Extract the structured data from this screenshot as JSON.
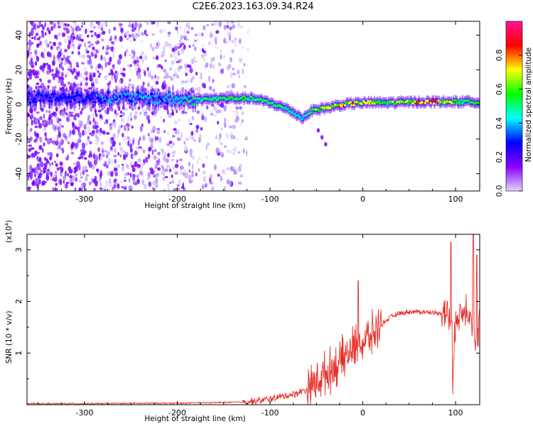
{
  "title": "C2E6.2023.163.09.34.R24",
  "chart_data": [
    {
      "type": "heatmap",
      "title": "C2E6.2023.163.09.34.R24",
      "xlabel": "Height of straight line (km)",
      "ylabel": "Frequency (Hz)",
      "xlim": [
        -362,
        126
      ],
      "ylim": [
        -50,
        48
      ],
      "x_ticks": [
        -300,
        -200,
        -100,
        0,
        100
      ],
      "x_tick_labels": [
        "-300",
        "-200",
        "-100",
        "0",
        "100"
      ],
      "y_ticks": [
        -40,
        -20,
        0,
        20,
        40
      ],
      "y_tick_labels": [
        "-40",
        "-20",
        "0",
        "20",
        "40"
      ],
      "colorbar": {
        "label": "Normalized spectral amplitude",
        "range": [
          0,
          1
        ],
        "ticks": [
          0.0,
          0.2,
          0.4,
          0.6,
          0.8
        ],
        "tick_labels": [
          "0.0",
          "0.2",
          "0.4",
          "0.6",
          "0.8"
        ],
        "colormap": "rainbow",
        "colors": [
          "#e0d6ff",
          "#8a00ff",
          "#0000ff",
          "#00ffff",
          "#00ff00",
          "#ffff00",
          "#ff0000",
          "#ff1493"
        ]
      },
      "ridge": [
        {
          "x": -362,
          "f": 4.0,
          "amp": 0.25
        },
        {
          "x": -300,
          "f": 4.0,
          "amp": 0.3
        },
        {
          "x": -250,
          "f": 4.0,
          "amp": 0.4
        },
        {
          "x": -210,
          "f": 3.0,
          "amp": 0.4
        },
        {
          "x": -185,
          "f": 2.5,
          "amp": 0.5
        },
        {
          "x": -150,
          "f": 3.5,
          "amp": 0.55
        },
        {
          "x": -120,
          "f": 3.5,
          "amp": 0.55
        },
        {
          "x": -100,
          "f": 1.0,
          "amp": 0.55
        },
        {
          "x": -80,
          "f": -3.0,
          "amp": 0.5
        },
        {
          "x": -65,
          "f": -8.0,
          "amp": 0.45
        },
        {
          "x": -55,
          "f": -3.5,
          "amp": 0.6
        },
        {
          "x": -40,
          "f": -2.0,
          "amp": 0.7
        },
        {
          "x": -20,
          "f": 0.0,
          "amp": 0.8
        },
        {
          "x": 0,
          "f": 1.0,
          "amp": 0.75
        },
        {
          "x": 30,
          "f": 1.0,
          "amp": 0.6
        },
        {
          "x": 60,
          "f": 1.5,
          "amp": 0.85
        },
        {
          "x": 80,
          "f": 1.5,
          "amp": 0.9
        },
        {
          "x": 100,
          "f": 1.5,
          "amp": 0.6
        },
        {
          "x": 126,
          "f": 1.5,
          "amp": 0.6
        }
      ],
      "side_streak": [
        {
          "x": -48,
          "f": -15.0
        },
        {
          "x": -44,
          "f": -19.0
        },
        {
          "x": -40,
          "f": -23.0
        }
      ]
    },
    {
      "type": "line",
      "xlabel": "Height of straight line (km)",
      "ylabel": "SNR (10 * v/v)",
      "y_multiplier": "(x10",
      "y_multiplier_exp": "4",
      "y_multiplier_close": ")",
      "xlim": [
        -362,
        126
      ],
      "ylim": [
        0,
        3.3
      ],
      "x_ticks": [
        -300,
        -200,
        -100,
        0,
        100
      ],
      "x_tick_labels": [
        "-300",
        "-200",
        "-100",
        "0",
        "100"
      ],
      "y_ticks": [
        1,
        2,
        3
      ],
      "y_tick_labels": [
        "1",
        "2",
        "3"
      ],
      "color": "#e8302a",
      "series": [
        {
          "x": [
            -362,
            -300,
            -200,
            -160,
            -130,
            -110,
            -90,
            -75,
            -60,
            -50,
            -40,
            -30,
            -20,
            -10,
            0,
            10,
            20,
            30,
            40,
            50,
            60,
            70,
            80,
            88,
            92,
            96,
            97,
            100,
            105,
            110,
            115,
            118,
            120,
            122,
            126
          ],
          "values": [
            0.02,
            0.02,
            0.03,
            0.04,
            0.05,
            0.08,
            0.15,
            0.2,
            0.3,
            0.45,
            0.6,
            0.75,
            0.9,
            1.1,
            1.2,
            1.35,
            1.55,
            1.7,
            1.77,
            1.8,
            1.8,
            1.79,
            1.78,
            1.78,
            1.75,
            1.5,
            0.25,
            1.8,
            1.7,
            1.9,
            1.85,
            1.6,
            1.3,
            1.0,
            1.8
          ]
        }
      ],
      "peaks": [
        {
          "x": -5,
          "y": 2.4
        },
        {
          "x": 95,
          "y": 3.15
        },
        {
          "x": 119,
          "y": 3.3
        },
        {
          "x": 123,
          "y": 2.9
        }
      ]
    }
  ]
}
